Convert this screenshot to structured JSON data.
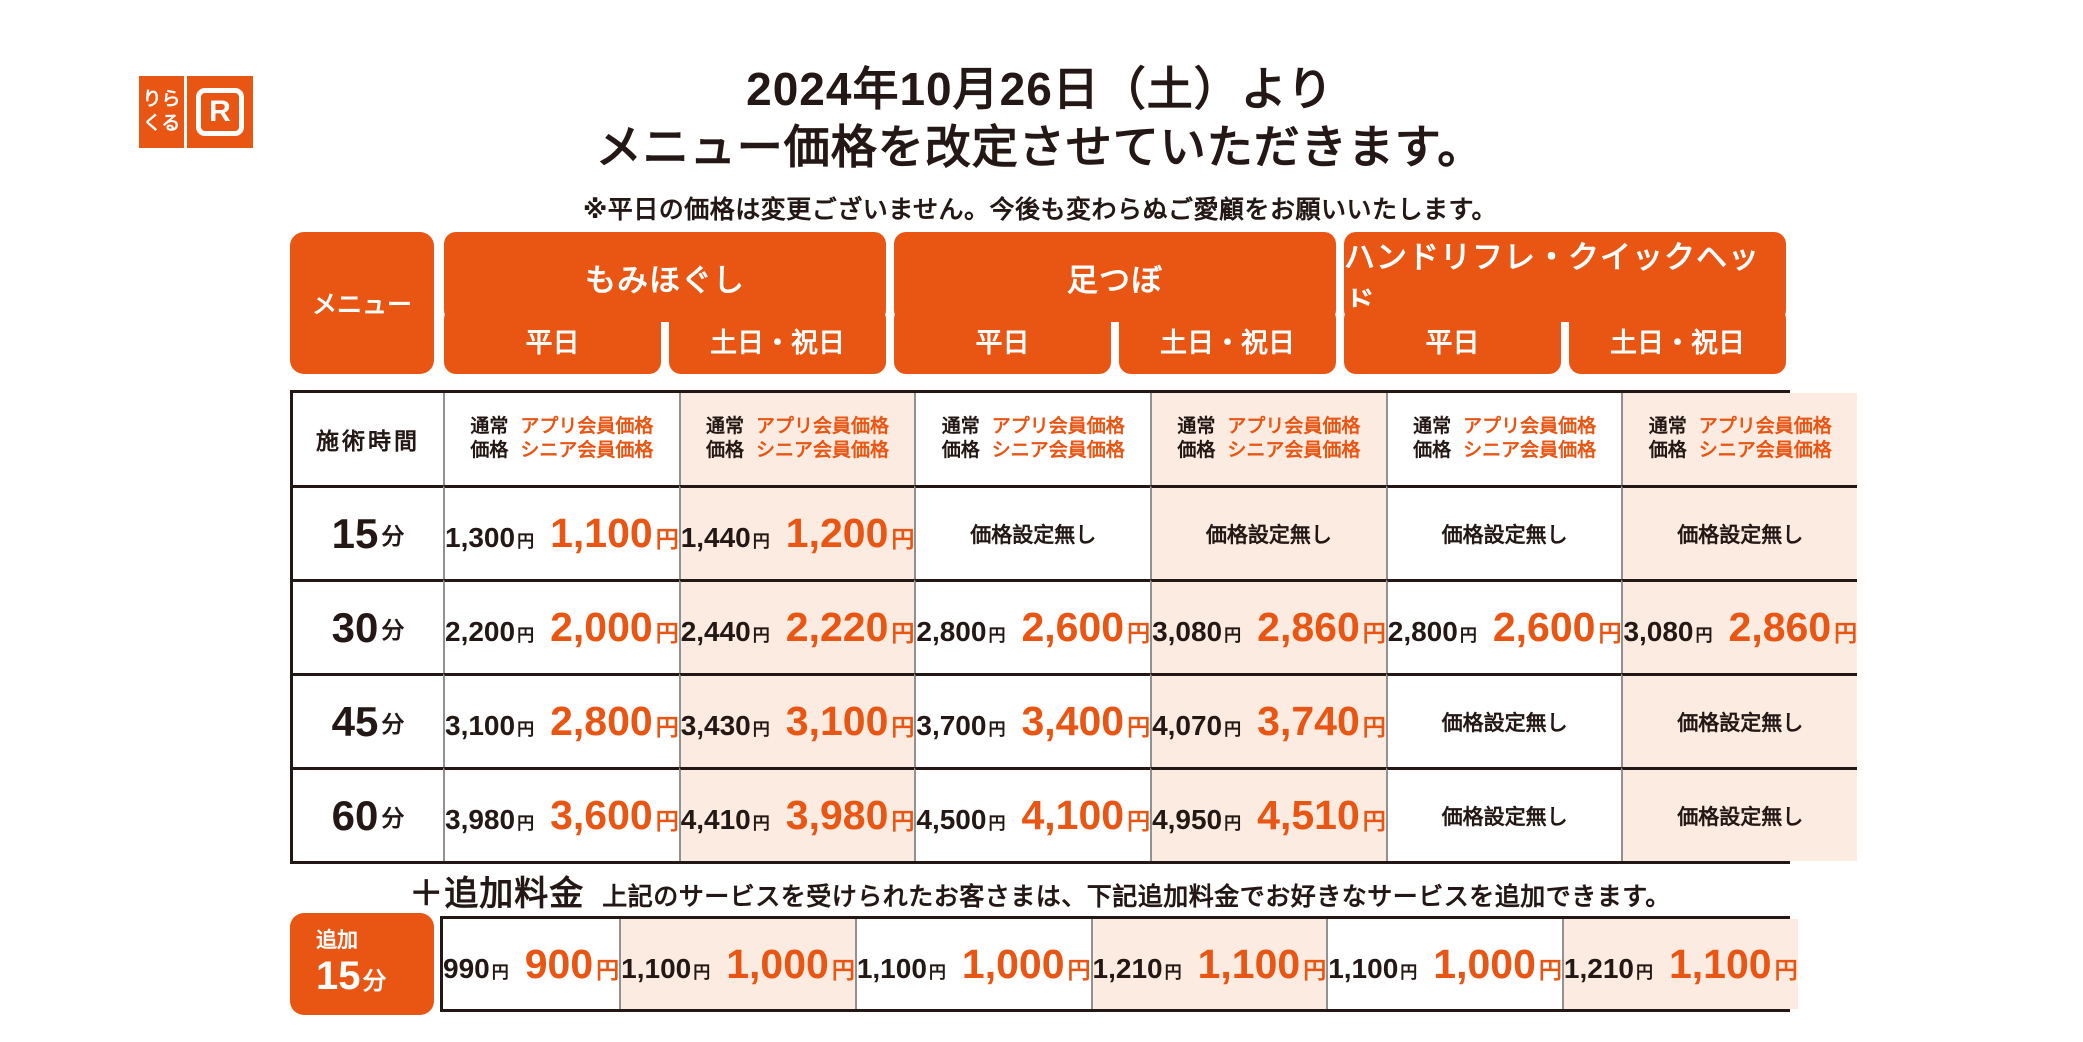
{
  "colors": {
    "brand_orange": "#e95513",
    "weekend_bg": "#fcebe0",
    "text_dark": "#231815"
  },
  "brand": {
    "logo_line1": "りら",
    "logo_line2": "くる",
    "logo_r": "R"
  },
  "header": {
    "title_line1": "2024年10月26日（土）より",
    "title_line2": "メニュー価格を改定させていただきます。",
    "note": "※平日の価格は変更ございません。今後も変わらぬご愛顧をお願いいたします。"
  },
  "table": {
    "menu_label": "メニュー",
    "categories": [
      {
        "name": "もみほぐし",
        "days": [
          "平日",
          "土日・祝日"
        ]
      },
      {
        "name": "足つぼ",
        "days": [
          "平日",
          "土日・祝日"
        ]
      },
      {
        "name": "ハンドリフレ・クイックヘッド",
        "days": [
          "平日",
          "土日・祝日"
        ]
      }
    ],
    "time_header": "施術時間",
    "price_header": {
      "normal_l1": "通常",
      "normal_l2": "価格",
      "member_l1": "アプリ会員価格",
      "member_l2": "シニア会員価格"
    },
    "no_price_label": "価格設定無し",
    "yen": "円",
    "rows": [
      {
        "time_num": "15",
        "time_unit": "分",
        "cells": [
          {
            "normal": "1,300",
            "member": "1,100"
          },
          {
            "normal": "1,440",
            "member": "1,200"
          },
          null,
          null,
          null,
          null
        ]
      },
      {
        "time_num": "30",
        "time_unit": "分",
        "cells": [
          {
            "normal": "2,200",
            "member": "2,000"
          },
          {
            "normal": "2,440",
            "member": "2,220"
          },
          {
            "normal": "2,800",
            "member": "2,600"
          },
          {
            "normal": "3,080",
            "member": "2,860"
          },
          {
            "normal": "2,800",
            "member": "2,600"
          },
          {
            "normal": "3,080",
            "member": "2,860"
          }
        ]
      },
      {
        "time_num": "45",
        "time_unit": "分",
        "cells": [
          {
            "normal": "3,100",
            "member": "2,800"
          },
          {
            "normal": "3,430",
            "member": "3,100"
          },
          {
            "normal": "3,700",
            "member": "3,400"
          },
          {
            "normal": "4,070",
            "member": "3,740"
          },
          null,
          null
        ]
      },
      {
        "time_num": "60",
        "time_unit": "分",
        "cells": [
          {
            "normal": "3,980",
            "member": "3,600"
          },
          {
            "normal": "4,410",
            "member": "3,980"
          },
          {
            "normal": "4,500",
            "member": "4,100"
          },
          {
            "normal": "4,950",
            "member": "4,510"
          },
          null,
          null
        ]
      }
    ]
  },
  "addon": {
    "heading": "＋追加料金",
    "description": "上記のサービスを受けられたお客さまは、下記追加料金でお好きなサービスを追加できます。",
    "badge_top": "追加",
    "badge_num": "15",
    "badge_unit": "分",
    "cells": [
      {
        "normal": "990",
        "member": "900"
      },
      {
        "normal": "1,100",
        "member": "1,000"
      },
      {
        "normal": "1,100",
        "member": "1,000"
      },
      {
        "normal": "1,210",
        "member": "1,100"
      },
      {
        "normal": "1,100",
        "member": "1,000"
      },
      {
        "normal": "1,210",
        "member": "1,100"
      }
    ]
  }
}
